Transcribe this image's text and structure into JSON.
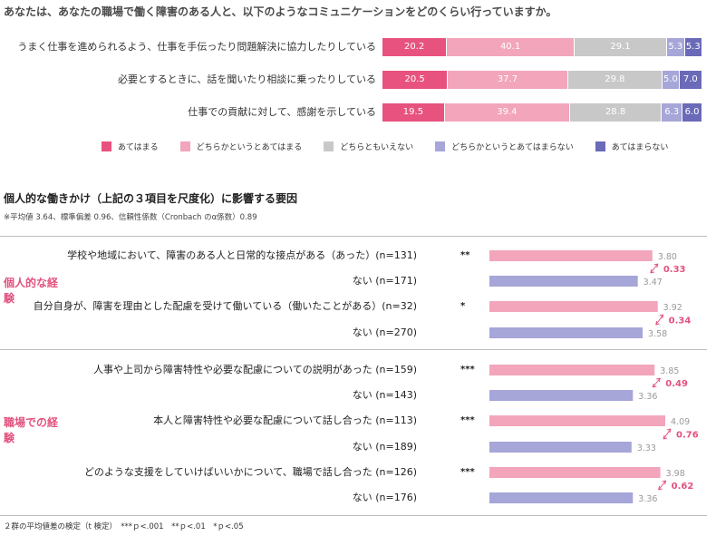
{
  "title": "あなたは、あなたの職場で働く障害のある人と、以下のようなコミュニケーションをどのくらい行っていますか。",
  "colors": {
    "agree": "#e8527f",
    "somewhat_agree": "#f2a5bb",
    "neutral": "#c8c8c8",
    "somewhat_disagree": "#a6a6d8",
    "disagree": "#6a6ab8",
    "bar_pink": "#f2a5bb",
    "bar_purple": "#a6a6d8",
    "accent": "#e3527e"
  },
  "chart_data": [
    {
      "type": "bar",
      "orientation": "horizontal-stacked-100",
      "title": "あなたは、あなたの職場で働く障害のある人と、以下のようなコミュニケーションをどのくらい行っていますか。",
      "categories": [
        "うまく仕事を進められるよう、仕事を手伝ったり問題解決に協力したりしている",
        "必要とするときに、話を聞いたり相談に乗ったりしている",
        "仕事での貢献に対して、感謝を示している"
      ],
      "series": [
        {
          "name": "あてはまる",
          "color": "#e8527f",
          "values": [
            20.2,
            20.5,
            19.5
          ],
          "labels": [
            "20.2",
            "20.5",
            "19.5"
          ]
        },
        {
          "name": "どちらかというとあてはまる",
          "color": "#f2a5bb",
          "values": [
            40.1,
            37.7,
            39.4
          ],
          "labels": [
            "40.1",
            "37.7",
            "39.4"
          ]
        },
        {
          "name": "どちらともいえない",
          "color": "#c8c8c8",
          "values": [
            29.1,
            29.8,
            28.8
          ],
          "labels": [
            "29.1",
            "29.8",
            "28.8"
          ]
        },
        {
          "name": "どちらかというとあてはまらない",
          "color": "#a6a6d8",
          "values": [
            5.3,
            5.0,
            6.3
          ],
          "labels": [
            "5.3",
            "5.0",
            "6.3"
          ]
        },
        {
          "name": "あてはまらない",
          "color": "#6a6ab8",
          "values": [
            5.3,
            7.0,
            6.0
          ],
          "labels": [
            "5.3",
            "7.0",
            "6.0"
          ]
        }
      ],
      "legend": "bottom"
    },
    {
      "type": "bar",
      "orientation": "horizontal",
      "title": "個人的な働きかけ（上記の３項目を尺度化）に影響する要因",
      "note": "※平均値 3.64、標準偏差 0.96、信頼性係数（Cronbach のα係数）0.89",
      "xlim": [
        0,
        4.5
      ],
      "groups": [
        {
          "label": "個人的な経験",
          "items": [
            {
              "yes_label": "学校や地域において、障害のある人と日常的な接点がある（あった）(n=131)",
              "no_label": "ない (n=171)",
              "sig": "**",
              "yes_value": 3.8,
              "yes_text": "3.80",
              "no_value": 3.47,
              "no_text": "3.47",
              "diff_text": "0.33"
            },
            {
              "yes_label": "自分自身が、障害を理由とした配慮を受けて働いている（働いたことがある）(n=32)",
              "no_label": "ない (n=270)",
              "sig": "*",
              "yes_value": 3.92,
              "yes_text": "3.92",
              "no_value": 3.58,
              "no_text": "3.58",
              "diff_text": "0.34"
            }
          ]
        },
        {
          "label": "職場での経験",
          "items": [
            {
              "yes_label": "人事や上司から障害特性や必要な配慮についての説明があった (n=159)",
              "no_label": "ない (n=143)",
              "sig": "***",
              "yes_value": 3.85,
              "yes_text": "3.85",
              "no_value": 3.36,
              "no_text": "3.36",
              "diff_text": "0.49"
            },
            {
              "yes_label": "本人と障害特性や必要な配慮について話し合った (n=113)",
              "no_label": "ない (n=189)",
              "sig": "***",
              "yes_value": 4.09,
              "yes_text": "4.09",
              "no_value": 3.33,
              "no_text": "3.33",
              "diff_text": "0.76"
            },
            {
              "yes_label": "どのような支援をしていけばいいかについて、職場で話し合った (n=126)",
              "no_label": "ない (n=176)",
              "sig": "***",
              "yes_value": 3.98,
              "yes_text": "3.98",
              "no_value": 3.36,
              "no_text": "3.36",
              "diff_text": "0.62"
            }
          ]
        }
      ],
      "footnote": "２群の平均値差の検定（t 検定）　***ｐ<.001　**ｐ<.01　*ｐ<.05"
    }
  ]
}
